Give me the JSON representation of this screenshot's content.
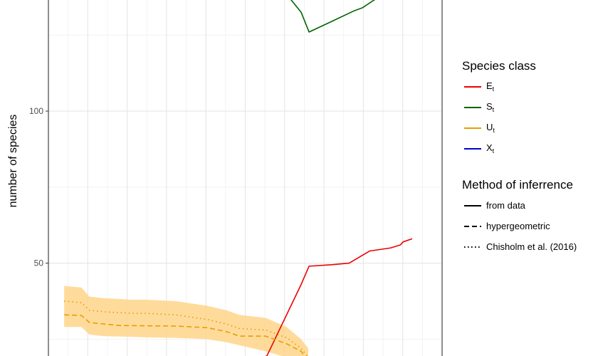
{
  "chart_data": {
    "type": "line",
    "title": "",
    "xlabel": "",
    "ylabel": "number of species",
    "y_ticks": [
      50,
      100
    ],
    "ylim": [
      19,
      137
    ],
    "xlim": [
      0,
      10
    ],
    "grid": true,
    "legend_placement": "right",
    "series": [
      {
        "name": "E",
        "subscript": "t",
        "class": "E",
        "method": "from data",
        "color": "#EE0000",
        "x": [
          5.1,
          5.55,
          6.42,
          6.62,
          7.22,
          7.64,
          8.16,
          8.69,
          8.94,
          9.01,
          9.24
        ],
        "y": [
          17.5,
          19.5,
          43.0,
          49.0,
          49.5,
          50.0,
          54.0,
          55.0,
          56.0,
          57.0,
          58.0
        ]
      },
      {
        "name": "S",
        "subscript": "t",
        "class": "S",
        "method": "from data",
        "color": "#006400",
        "x": [
          5.95,
          6.42,
          6.62,
          7.2,
          7.77,
          7.98,
          8.27,
          8.76,
          9.24
        ],
        "y": [
          140.0,
          132.5,
          126.0,
          129.5,
          133.0,
          134.0,
          136.5,
          140.0,
          140.0
        ]
      },
      {
        "name": "U",
        "subscript": "t",
        "class": "U",
        "method": "hypergeometric",
        "color": "#E6A000",
        "x": [
          0.4,
          0.84,
          1.04,
          1.4,
          1.82,
          3.24,
          4.02,
          4.52,
          4.85,
          5.52,
          6.05,
          6.42,
          6.6
        ],
        "y": [
          33.0,
          32.8,
          30.5,
          30.0,
          29.5,
          29.3,
          28.8,
          27.5,
          26.0,
          26.0,
          23.5,
          21.0,
          18.0
        ]
      },
      {
        "name": "U",
        "subscript": "t",
        "class": "U",
        "method": "Chisholm et al. (2016)",
        "color": "#E6A000",
        "x": [
          0.4,
          0.84,
          1.04,
          1.4,
          2.11,
          2.45,
          3.24,
          4.02,
          4.52,
          4.85,
          5.52,
          6.05,
          6.42,
          6.6
        ],
        "y": [
          37.5,
          37.0,
          34.5,
          34.0,
          33.5,
          33.5,
          33.0,
          31.5,
          30.0,
          28.5,
          28.0,
          25.5,
          22.0,
          19.0
        ]
      }
    ],
    "ribbon": {
      "class": "U",
      "color": "#FFD58A",
      "x": [
        0.4,
        0.84,
        1.04,
        1.4,
        2.11,
        2.45,
        3.24,
        4.02,
        4.52,
        4.85,
        5.52,
        6.05,
        6.42,
        6.6
      ],
      "lower": [
        29.0,
        29.0,
        26.5,
        26.0,
        25.8,
        25.6,
        25.4,
        25.0,
        24.0,
        23.0,
        21.0,
        19.0,
        17.0,
        16.0
      ],
      "upper": [
        42.5,
        42.0,
        39.0,
        38.5,
        38.0,
        38.0,
        37.5,
        36.0,
        34.5,
        33.0,
        32.0,
        29.0,
        25.0,
        22.0
      ]
    }
  },
  "legend": {
    "class_title": "Species class",
    "classes": [
      {
        "key": "E",
        "sub": "t",
        "color": "#EE0000"
      },
      {
        "key": "S",
        "sub": "t",
        "color": "#006400"
      },
      {
        "key": "U",
        "sub": "t",
        "color": "#E6A000"
      },
      {
        "key": "X",
        "sub": "t",
        "color": "#0000CC"
      }
    ],
    "method_title": "Method of inferrence",
    "methods": [
      {
        "label": "from data",
        "style": "solid"
      },
      {
        "label": "hypergeometric",
        "style": "dashed"
      },
      {
        "label": "Chisholm et al. (2016)",
        "style": "dotted"
      }
    ]
  }
}
